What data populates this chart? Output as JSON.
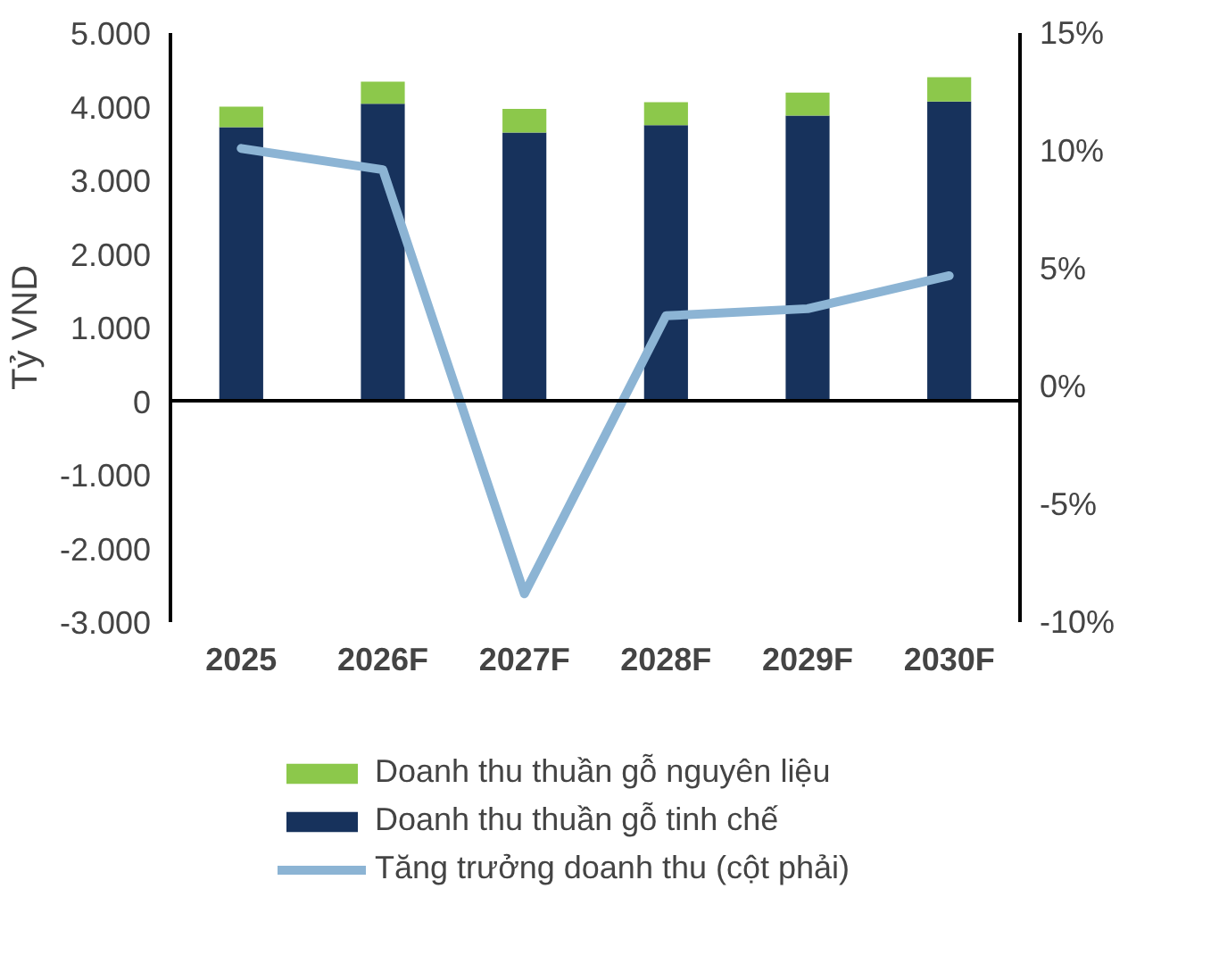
{
  "chart_data": {
    "type": "bar",
    "stacked": true,
    "ylabel": "Tỷ VND",
    "categories": [
      "2025",
      "2026F",
      "2027F",
      "2028F",
      "2029F",
      "2030F"
    ],
    "series": [
      {
        "name": "Doanh thu thuần gỗ tinh chế",
        "color": "#17325c",
        "values": [
          3720,
          4040,
          3650,
          3750,
          3880,
          4070
        ]
      },
      {
        "name": "Doanh thu thuần gỗ nguyên liệu",
        "color": "#8cc84b",
        "values": [
          280,
          300,
          320,
          310,
          310,
          330
        ]
      },
      {
        "name": "Tăng trưởng doanh thu (cột phải)",
        "type": "line",
        "axis": "y2",
        "color": "#8cb4d4",
        "values": [
          10.1,
          9.2,
          -8.8,
          3.0,
          3.3,
          4.7
        ]
      }
    ],
    "ylim": [
      -3000,
      5000
    ],
    "yticks": [
      {
        "value": -3000,
        "label": "-3.000"
      },
      {
        "value": -2000,
        "label": "-2.000"
      },
      {
        "value": -1000,
        "label": "-1.000"
      },
      0,
      {
        "value": 1000,
        "label": "1.000"
      },
      {
        "value": 2000,
        "label": "2.000"
      },
      {
        "value": 3000,
        "label": "3.000"
      },
      {
        "value": 4000,
        "label": "4.000"
      },
      {
        "value": 5000,
        "label": "5.000"
      }
    ],
    "y2lim": [
      -10,
      15
    ],
    "y2ticks": [
      {
        "value": -10,
        "label": "-10%"
      },
      {
        "value": -5,
        "label": "-5%"
      },
      {
        "value": 0,
        "label": "0%"
      },
      {
        "value": 5,
        "label": "5%"
      },
      {
        "value": 10,
        "label": "10%"
      },
      {
        "value": 15,
        "label": "15%"
      }
    ],
    "legend": "bottom"
  }
}
